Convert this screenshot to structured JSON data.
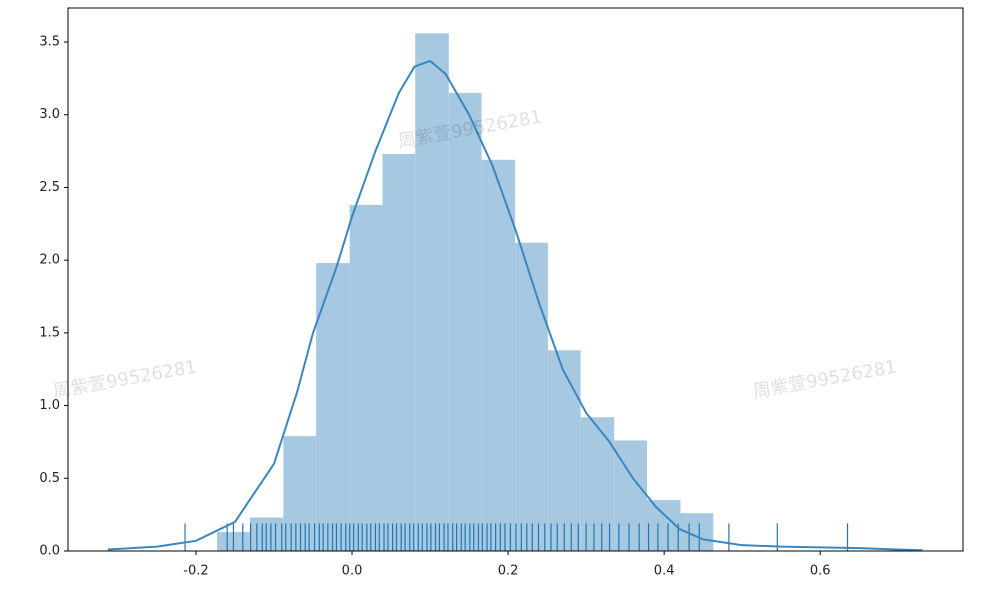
{
  "chart_data": {
    "type": "histogram",
    "watermark": "周紫萱99526281",
    "bins": [
      -0.173,
      -0.131,
      -0.088,
      -0.046,
      -0.003,
      0.039,
      0.081,
      0.124,
      0.166,
      0.209,
      0.251,
      0.293,
      0.336,
      0.378,
      0.421,
      0.463
    ],
    "values": [
      0.13,
      0.23,
      0.79,
      1.98,
      2.38,
      2.73,
      3.56,
      3.15,
      2.69,
      2.12,
      1.38,
      0.92,
      0.76,
      0.35,
      0.26
    ],
    "color": "#a6c8e0",
    "kde": {
      "color": "#3a87c0",
      "x": [
        -0.313,
        -0.25,
        -0.2,
        -0.15,
        -0.1,
        -0.07,
        -0.05,
        -0.02,
        0.0,
        0.03,
        0.06,
        0.08,
        0.1,
        0.12,
        0.15,
        0.18,
        0.21,
        0.24,
        0.27,
        0.3,
        0.33,
        0.36,
        0.39,
        0.42,
        0.45,
        0.5,
        0.55,
        0.6,
        0.65,
        0.7,
        0.731
      ],
      "y": [
        0.01,
        0.03,
        0.07,
        0.2,
        0.6,
        1.1,
        1.5,
        1.95,
        2.3,
        2.75,
        3.15,
        3.33,
        3.37,
        3.28,
        3.0,
        2.65,
        2.2,
        1.7,
        1.25,
        0.95,
        0.75,
        0.5,
        0.3,
        0.15,
        0.08,
        0.04,
        0.03,
        0.025,
        0.02,
        0.01,
        0.005
      ]
    },
    "rug": {
      "color": "#1f77b4",
      "height": 0.19,
      "x": [
        -0.214,
        -0.16,
        -0.152,
        -0.14,
        -0.13,
        -0.122,
        -0.115,
        -0.11,
        -0.104,
        -0.098,
        -0.09,
        -0.085,
        -0.078,
        -0.072,
        -0.066,
        -0.06,
        -0.055,
        -0.048,
        -0.042,
        -0.037,
        -0.031,
        -0.025,
        -0.02,
        -0.014,
        -0.008,
        -0.003,
        0.002,
        0.008,
        0.013,
        0.019,
        0.024,
        0.03,
        0.035,
        0.041,
        0.046,
        0.052,
        0.057,
        0.063,
        0.068,
        0.074,
        0.079,
        0.085,
        0.09,
        0.096,
        0.101,
        0.107,
        0.112,
        0.118,
        0.123,
        0.129,
        0.134,
        0.14,
        0.145,
        0.151,
        0.156,
        0.162,
        0.167,
        0.173,
        0.178,
        0.184,
        0.19,
        0.196,
        0.203,
        0.21,
        0.217,
        0.224,
        0.231,
        0.239,
        0.247,
        0.255,
        0.263,
        0.272,
        0.281,
        0.29,
        0.3,
        0.31,
        0.32,
        0.33,
        0.342,
        0.355,
        0.368,
        0.38,
        0.392,
        0.405,
        0.418,
        0.432,
        0.445,
        0.483,
        0.545,
        0.635
      ]
    },
    "xlim": [
      -0.364,
      0.783
    ],
    "ylim": [
      0,
      3.734
    ],
    "xticks": [
      -0.2,
      {
        "value": 0,
        "label": "0.0"
      },
      0.2,
      0.4,
      0.6
    ],
    "yticks": [
      {
        "value": 0,
        "label": "0.0"
      },
      0.5,
      {
        "value": 1,
        "label": "1.0"
      },
      1.5,
      {
        "value": 2,
        "label": "2.0"
      },
      2.5,
      {
        "value": 3,
        "label": "3.0"
      },
      3.5
    ]
  }
}
